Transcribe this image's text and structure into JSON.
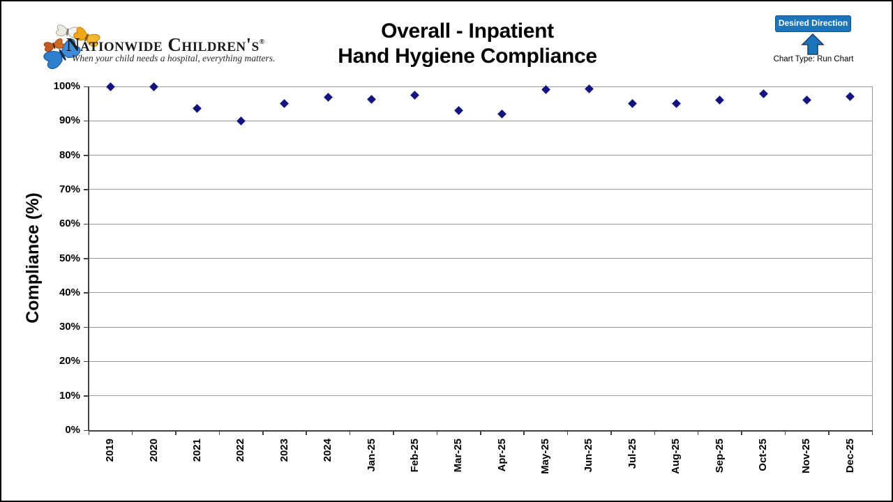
{
  "logo": {
    "name": "Nationwide Children's",
    "registered": "®",
    "tagline": "When your child needs a hospital, everything matters.",
    "butterfly_colors": {
      "large": "#2E7FD0",
      "orange": "#C05A1E",
      "white": "#EDEAE4",
      "yellow": "#F2A71B"
    }
  },
  "header": {
    "title_line1": "Overall - Inpatient",
    "title_line2": "Hand Hygiene Compliance"
  },
  "legend": {
    "desired_direction_label": "Desired Direction",
    "arrow_icon": "up-arrow",
    "chart_type_label": "Chart Type: Run Chart",
    "button_fill": "#1B75BC",
    "button_border": "#14527E",
    "arrow_fill": "#1B75BC",
    "arrow_border": "#1F3864"
  },
  "chart_data": {
    "type": "scatter",
    "title": "Overall - Inpatient Hand Hygiene Compliance",
    "xlabel": "",
    "ylabel": "Compliance (%)",
    "categories": [
      "2019",
      "2020",
      "2021",
      "2022",
      "2023",
      "2024",
      "Jan-25",
      "Feb-25",
      "Mar-25",
      "Apr-25",
      "May-25",
      "Jun-25",
      "Jul-25",
      "Aug-25",
      "Sep-25",
      "Oct-25",
      "Nov-25",
      "Dec-25"
    ],
    "values": [
      100,
      100,
      93.7,
      90,
      95,
      96.8,
      96.2,
      97.4,
      93,
      92,
      99,
      99.2,
      95,
      95,
      96,
      97.9,
      96,
      97
    ],
    "ylim": [
      0,
      100
    ],
    "yticks": [
      {
        "value": 100,
        "label": "100%"
      },
      {
        "value": 90,
        "label": "90%"
      },
      {
        "value": 80,
        "label": "80%"
      },
      {
        "value": 70,
        "label": "70%"
      },
      {
        "value": 60,
        "label": "60%"
      },
      {
        "value": 50,
        "label": "50%"
      },
      {
        "value": 40,
        "label": "40%"
      },
      {
        "value": 30,
        "label": "30%"
      },
      {
        "value": 20,
        "label": "20%"
      },
      {
        "value": 10,
        "label": "10%"
      },
      {
        "value": 0,
        "label": "0%"
      }
    ],
    "grid": true,
    "legend_position": "none",
    "marker": "diamond",
    "marker_color": "#13137F",
    "gridline_color": "#9B9B9B",
    "axis_color": "#404040"
  }
}
